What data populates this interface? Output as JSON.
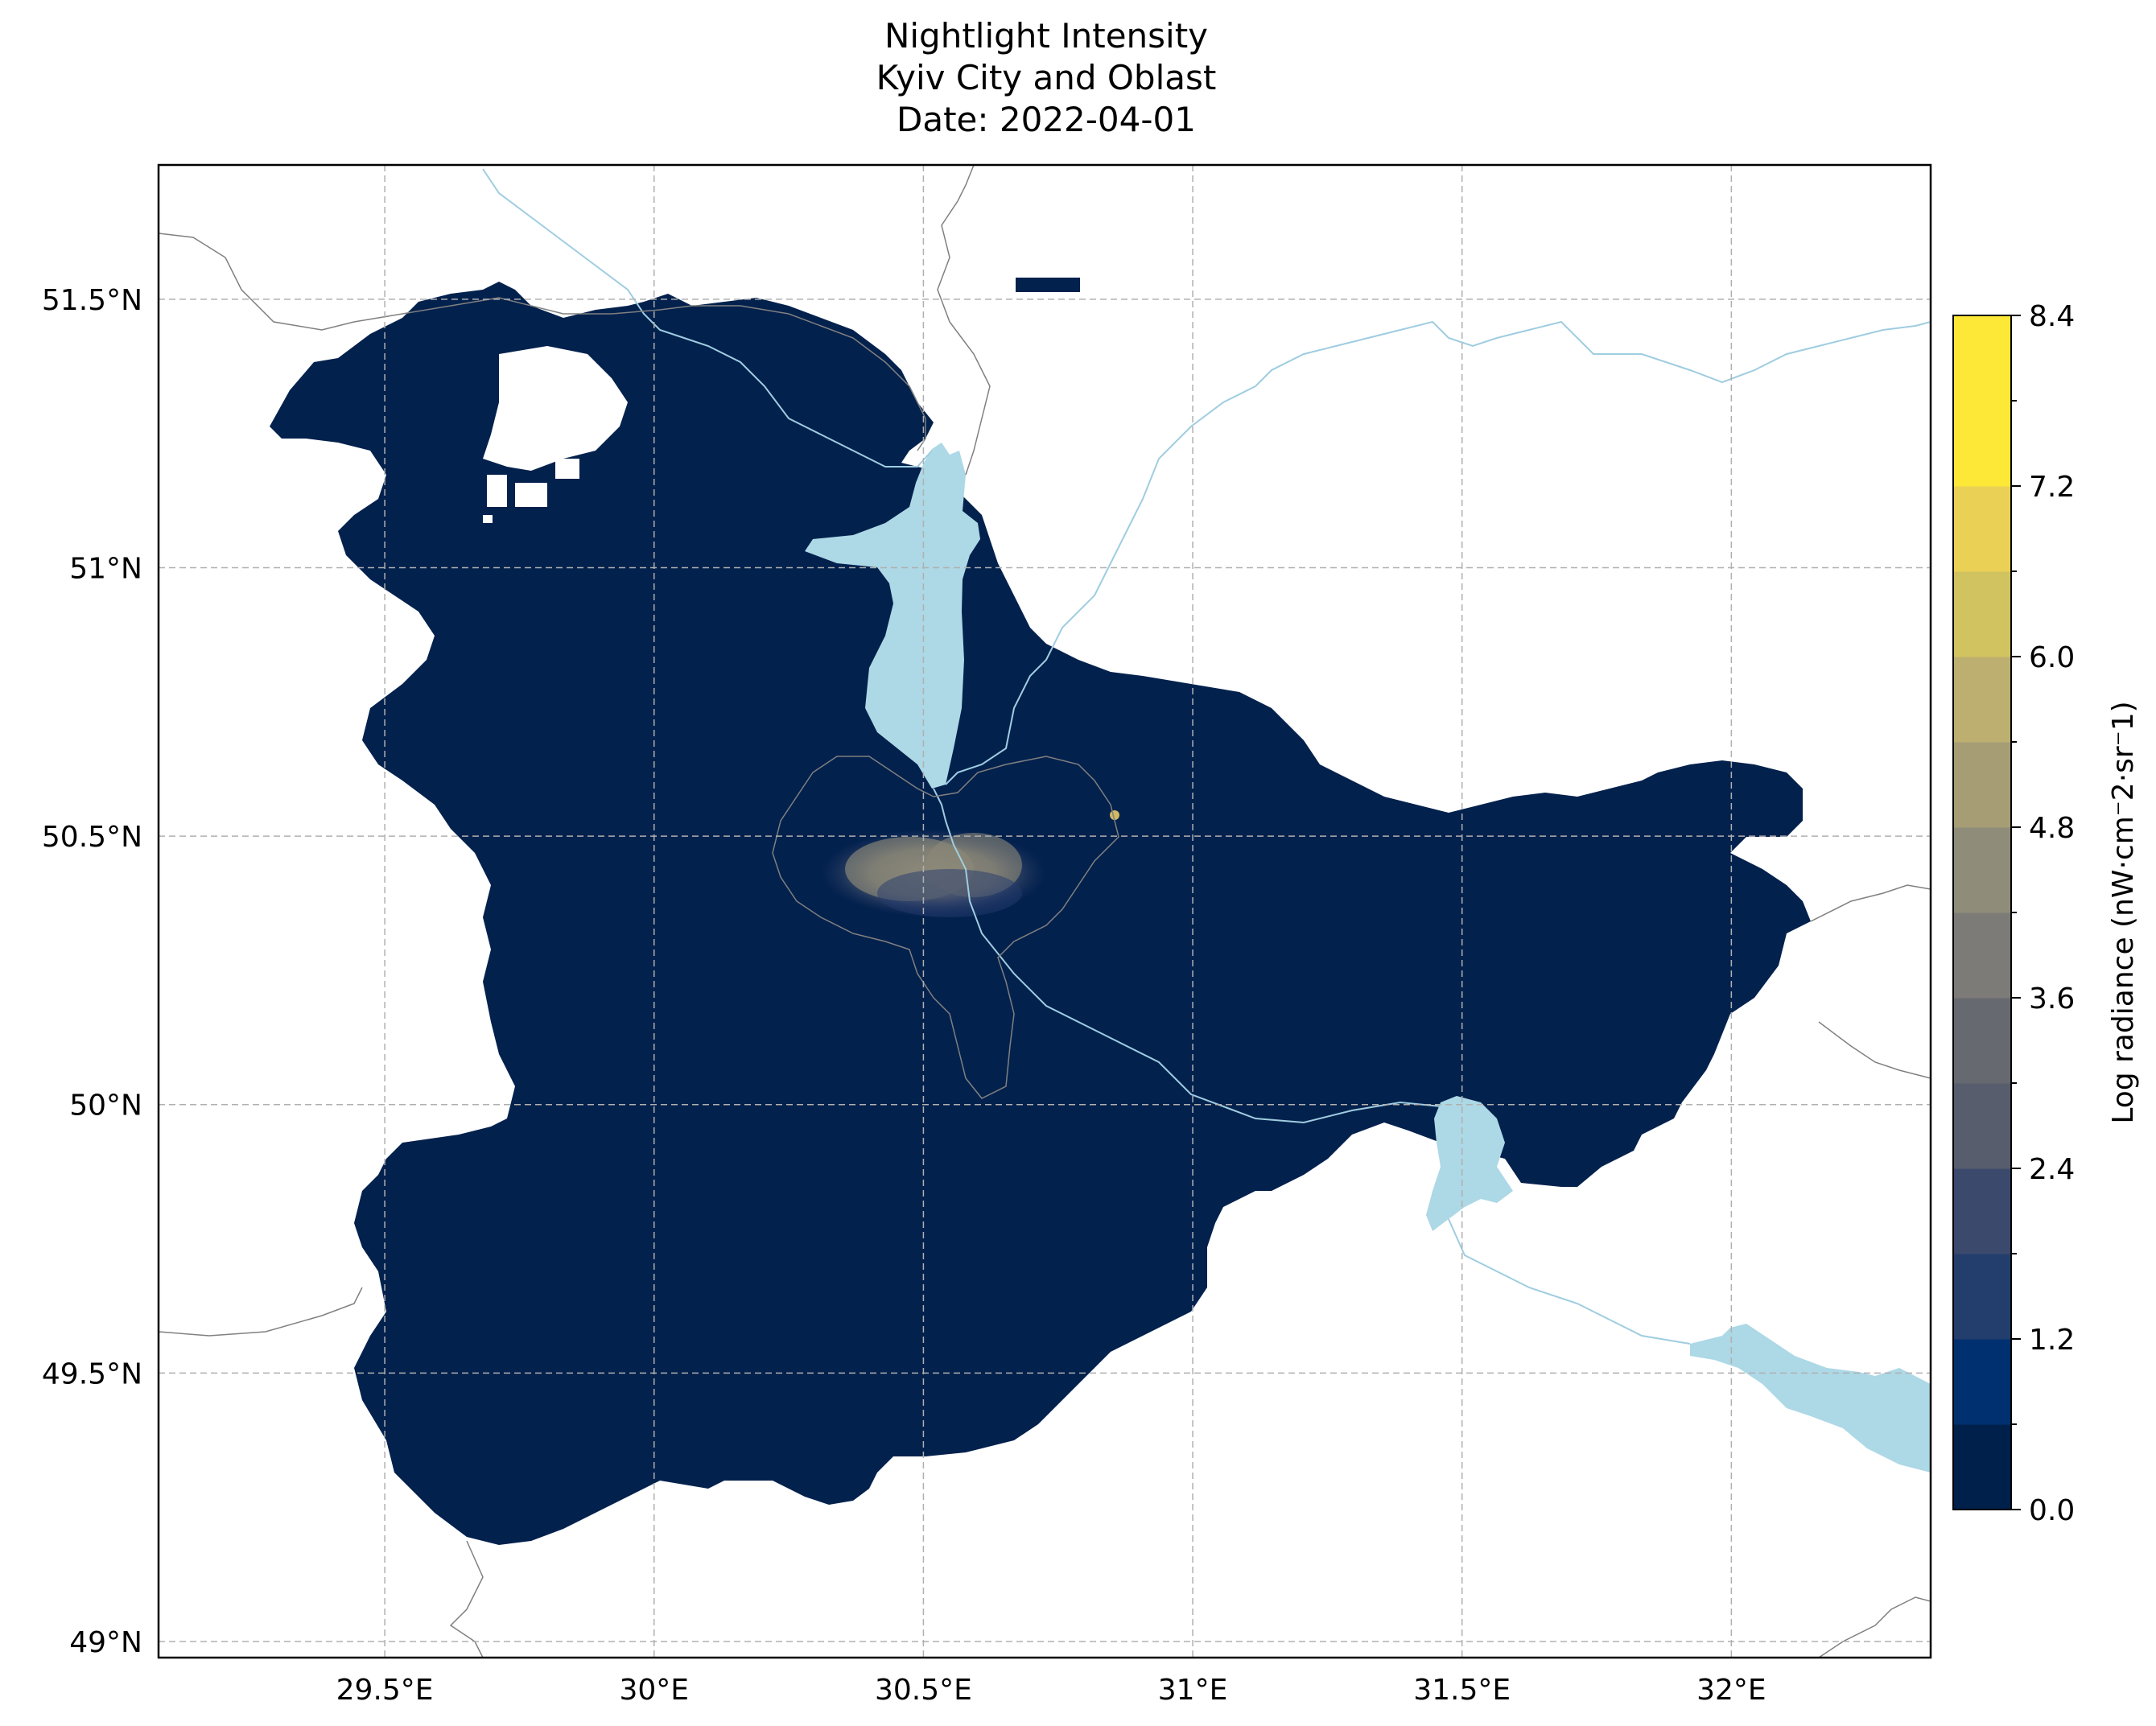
{
  "title": {
    "line1": "Nightlight Intensity",
    "line2": "Kyiv City and Oblast",
    "line3": "Date: 2022-04-01"
  },
  "map": {
    "lon_range": [
      29.08,
      32.37
    ],
    "lat_range": [
      48.97,
      51.75
    ],
    "lon_ticks": [
      29.5,
      30.0,
      30.5,
      31.0,
      31.5,
      32.0
    ],
    "lon_tick_labels": [
      "29.5°E",
      "30°E",
      "30.5°E",
      "31°E",
      "31.5°E",
      "32°E"
    ],
    "lat_ticks": [
      49.0,
      49.5,
      50.0,
      50.5,
      51.0,
      51.5
    ],
    "lat_tick_labels": [
      "49°N",
      "49.5°N",
      "50°N",
      "50.5°N",
      "51°N",
      "51.5°N"
    ],
    "gridlines": true,
    "colors": {
      "land_dark": "#03214d",
      "water": "#add8e6",
      "river": "#9fcde0",
      "border": "#808080",
      "grid": "#b0b0b0",
      "city_glow": "#8c8878"
    }
  },
  "colorbar": {
    "label": "Log radiance (nW·cm⁻2·sr⁻1)",
    "min": 0.0,
    "max": 8.4,
    "tick_values": [
      0.0,
      1.2,
      2.4,
      3.6,
      4.8,
      6.0,
      7.2,
      8.4
    ],
    "tick_labels": [
      "0.0",
      "1.2",
      "2.4",
      "3.6",
      "4.8",
      "6.0",
      "7.2",
      "8.4"
    ],
    "bins": 14,
    "colors": [
      "#00204c",
      "#00306f",
      "#233e6c",
      "#3b496c",
      "#575d6d",
      "#666970",
      "#7c7b78",
      "#8f8c7a",
      "#a69d75",
      "#bcaf6f",
      "#d2c361",
      "#ead156",
      "#fde737",
      "#fde737"
    ]
  }
}
